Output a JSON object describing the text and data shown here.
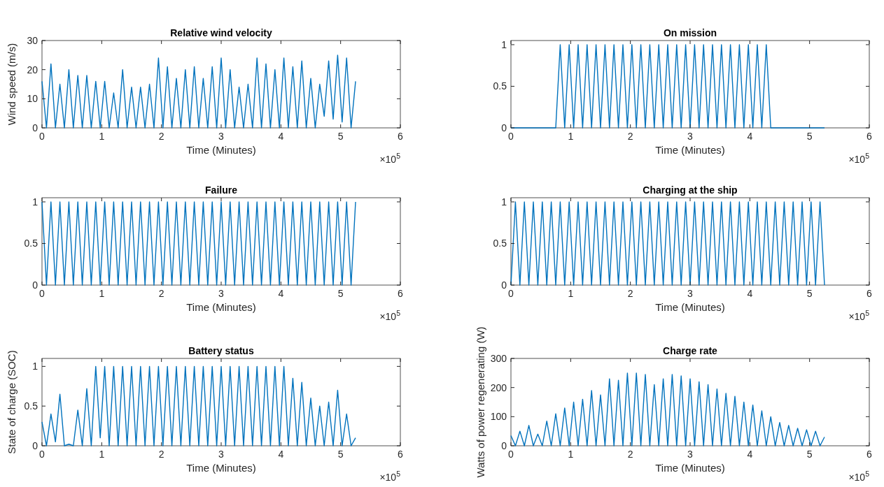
{
  "chart_data": [
    {
      "type": "line",
      "title": "Relative wind velocity",
      "xlabel": "Time (Minutes)",
      "ylabel": "Wind speed (m/s)",
      "annotations": [
        "×10$^{5}$"
      ],
      "xlim": [
        0,
        6
      ],
      "xticks": [
        0,
        1,
        2,
        3,
        4,
        5,
        6
      ],
      "ylim": [
        0,
        30
      ],
      "yticks": [
        0,
        10,
        20,
        30
      ],
      "grid": false,
      "x": [
        0,
        0.075,
        0.15,
        0.225,
        0.3,
        0.375,
        0.45,
        0.525,
        0.6,
        0.675,
        0.75,
        0.825,
        0.9,
        0.975,
        1.05,
        1.125,
        1.2,
        1.275,
        1.35,
        1.425,
        1.5,
        1.575,
        1.65,
        1.725,
        1.8,
        1.875,
        1.95,
        2.025,
        2.1,
        2.175,
        2.25,
        2.325,
        2.4,
        2.475,
        2.55,
        2.625,
        2.7,
        2.775,
        2.85,
        2.925,
        3,
        3.075,
        3.15,
        3.225,
        3.3,
        3.375,
        3.45,
        3.525,
        3.6,
        3.675,
        3.75,
        3.825,
        3.9,
        3.975,
        4.05,
        4.125,
        4.2,
        4.275,
        4.35,
        4.425,
        4.5,
        4.575,
        4.65,
        4.725,
        4.8,
        4.875,
        4.95,
        5.025,
        5.1,
        5.175,
        5.25
      ],
      "series": [
        {
          "color": "#0072bd",
          "values": [
            16,
            0,
            22,
            0,
            15,
            0,
            20,
            0,
            18,
            0,
            18,
            0,
            16,
            0,
            16,
            0,
            12,
            0,
            20,
            0,
            14,
            0,
            14,
            0,
            15,
            0,
            24,
            0,
            21,
            0,
            17,
            0,
            20,
            0,
            21,
            0,
            17,
            0,
            21,
            0,
            24,
            0,
            20,
            0,
            14,
            0,
            15,
            0,
            24,
            0,
            22,
            0,
            20,
            0,
            24,
            0,
            21,
            0,
            23,
            0,
            17,
            0,
            15,
            4,
            23,
            3,
            25,
            2,
            24,
            0,
            16
          ]
        }
      ]
    },
    {
      "type": "line",
      "title": "On mission",
      "xlabel": "Time (Minutes)",
      "annotations": [
        "×10$^{5}$"
      ],
      "xlim": [
        0,
        6
      ],
      "xticks": [
        0,
        1,
        2,
        3,
        4,
        5,
        6
      ],
      "ylim": [
        0,
        1.05
      ],
      "yticks": [
        0,
        0.5,
        1
      ],
      "grid": false,
      "x": [
        0,
        0.075,
        0.15,
        0.225,
        0.3,
        0.375,
        0.45,
        0.525,
        0.6,
        0.675,
        0.75,
        0.825,
        0.9,
        0.975,
        1.05,
        1.125,
        1.2,
        1.275,
        1.35,
        1.425,
        1.5,
        1.575,
        1.65,
        1.725,
        1.8,
        1.875,
        1.95,
        2.025,
        2.1,
        2.175,
        2.25,
        2.325,
        2.4,
        2.475,
        2.55,
        2.625,
        2.7,
        2.775,
        2.85,
        2.925,
        3,
        3.075,
        3.15,
        3.225,
        3.3,
        3.375,
        3.45,
        3.525,
        3.6,
        3.675,
        3.75,
        3.825,
        3.9,
        3.975,
        4.05,
        4.125,
        4.2,
        4.275,
        4.35,
        4.425,
        4.5,
        4.575,
        4.65,
        4.725,
        4.8,
        4.875,
        4.95,
        5.025,
        5.1,
        5.175,
        5.25
      ],
      "series": [
        {
          "color": "#0072bd",
          "values": [
            0,
            0,
            0,
            0,
            0,
            0,
            0,
            0,
            0,
            0,
            0,
            1,
            0,
            1,
            0,
            1,
            0,
            1,
            0,
            1,
            0,
            1,
            0,
            1,
            0,
            1,
            0,
            1,
            0,
            1,
            0,
            1,
            0,
            1,
            0,
            1,
            0,
            1,
            0,
            1,
            0,
            1,
            0,
            1,
            0,
            1,
            0,
            1,
            0,
            1,
            0,
            1,
            0,
            1,
            0,
            1,
            0,
            1,
            0,
            0,
            0,
            0,
            0,
            0,
            0,
            0,
            0,
            0,
            0,
            0,
            0
          ]
        }
      ]
    },
    {
      "type": "line",
      "title": "Failure",
      "xlabel": "Time (Minutes)",
      "annotations": [
        "×10$^{5}$"
      ],
      "xlim": [
        0,
        6
      ],
      "xticks": [
        0,
        1,
        2,
        3,
        4,
        5,
        6
      ],
      "ylim": [
        0,
        1.05
      ],
      "yticks": [
        0,
        0.5,
        1
      ],
      "grid": false,
      "x": [
        0,
        0.075,
        0.15,
        0.225,
        0.3,
        0.375,
        0.45,
        0.525,
        0.6,
        0.675,
        0.75,
        0.825,
        0.9,
        0.975,
        1.05,
        1.125,
        1.2,
        1.275,
        1.35,
        1.425,
        1.5,
        1.575,
        1.65,
        1.725,
        1.8,
        1.875,
        1.95,
        2.025,
        2.1,
        2.175,
        2.25,
        2.325,
        2.4,
        2.475,
        2.55,
        2.625,
        2.7,
        2.775,
        2.85,
        2.925,
        3,
        3.075,
        3.15,
        3.225,
        3.3,
        3.375,
        3.45,
        3.525,
        3.6,
        3.675,
        3.75,
        3.825,
        3.9,
        3.975,
        4.05,
        4.125,
        4.2,
        4.275,
        4.35,
        4.425,
        4.5,
        4.575,
        4.65,
        4.725,
        4.8,
        4.875,
        4.95,
        5.025,
        5.1,
        5.175,
        5.25
      ],
      "series": [
        {
          "color": "#0072bd",
          "values": [
            1,
            0,
            1,
            0,
            1,
            0,
            1,
            0,
            1,
            0,
            1,
            0,
            1,
            0,
            1,
            0,
            1,
            0,
            1,
            0,
            1,
            0,
            1,
            0,
            1,
            0,
            1,
            0,
            1,
            0,
            1,
            0,
            1,
            0,
            1,
            0,
            1,
            0,
            1,
            0,
            1,
            0,
            1,
            0,
            1,
            0,
            1,
            0,
            1,
            0,
            1,
            0,
            1,
            0,
            1,
            0,
            1,
            0,
            1,
            0,
            1,
            0,
            1,
            0,
            1,
            0,
            1,
            0,
            1,
            0,
            1
          ]
        }
      ]
    },
    {
      "type": "line",
      "title": "Charging at the ship",
      "xlabel": "Time (Minutes)",
      "annotations": [
        "×10$^{5}$"
      ],
      "xlim": [
        0,
        6
      ],
      "xticks": [
        0,
        1,
        2,
        3,
        4,
        5,
        6
      ],
      "ylim": [
        0,
        1.05
      ],
      "yticks": [
        0,
        0.5,
        1
      ],
      "grid": false,
      "x": [
        0,
        0.075,
        0.15,
        0.225,
        0.3,
        0.375,
        0.45,
        0.525,
        0.6,
        0.675,
        0.75,
        0.825,
        0.9,
        0.975,
        1.05,
        1.125,
        1.2,
        1.275,
        1.35,
        1.425,
        1.5,
        1.575,
        1.65,
        1.725,
        1.8,
        1.875,
        1.95,
        2.025,
        2.1,
        2.175,
        2.25,
        2.325,
        2.4,
        2.475,
        2.55,
        2.625,
        2.7,
        2.775,
        2.85,
        2.925,
        3,
        3.075,
        3.15,
        3.225,
        3.3,
        3.375,
        3.45,
        3.525,
        3.6,
        3.675,
        3.75,
        3.825,
        3.9,
        3.975,
        4.05,
        4.125,
        4.2,
        4.275,
        4.35,
        4.425,
        4.5,
        4.575,
        4.65,
        4.725,
        4.8,
        4.875,
        4.95,
        5.025,
        5.1,
        5.175,
        5.25
      ],
      "series": [
        {
          "color": "#0072bd",
          "values": [
            0,
            1,
            0,
            1,
            0,
            1,
            0,
            1,
            0,
            1,
            0,
            1,
            0,
            1,
            0,
            1,
            0,
            1,
            0,
            1,
            0,
            1,
            0,
            1,
            0,
            1,
            0,
            1,
            0,
            1,
            0,
            1,
            0,
            1,
            0,
            1,
            0,
            1,
            0,
            1,
            0,
            1,
            0,
            1,
            0,
            1,
            0,
            1,
            0,
            1,
            0,
            1,
            0,
            1,
            0,
            1,
            0,
            1,
            0,
            1,
            0,
            1,
            0,
            1,
            0,
            1,
            0,
            1,
            0,
            1,
            0
          ]
        }
      ]
    },
    {
      "type": "line",
      "title": "Battery status",
      "xlabel": "Time (Minutes)",
      "ylabel": "State of charge (SOC)",
      "annotations": [
        "×10$^{5}$"
      ],
      "xlim": [
        0,
        6
      ],
      "xticks": [
        0,
        1,
        2,
        3,
        4,
        5,
        6
      ],
      "ylim": [
        0,
        1.1
      ],
      "yticks": [
        0,
        0.5,
        1
      ],
      "grid": false,
      "x": [
        0,
        0.075,
        0.15,
        0.225,
        0.3,
        0.375,
        0.45,
        0.525,
        0.6,
        0.675,
        0.75,
        0.825,
        0.9,
        0.975,
        1.05,
        1.125,
        1.2,
        1.275,
        1.35,
        1.425,
        1.5,
        1.575,
        1.65,
        1.725,
        1.8,
        1.875,
        1.95,
        2.025,
        2.1,
        2.175,
        2.25,
        2.325,
        2.4,
        2.475,
        2.55,
        2.625,
        2.7,
        2.775,
        2.85,
        2.925,
        3,
        3.075,
        3.15,
        3.225,
        3.3,
        3.375,
        3.45,
        3.525,
        3.6,
        3.675,
        3.75,
        3.825,
        3.9,
        3.975,
        4.05,
        4.125,
        4.2,
        4.275,
        4.35,
        4.425,
        4.5,
        4.575,
        4.65,
        4.725,
        4.8,
        4.875,
        4.95,
        5.025,
        5.1,
        5.175,
        5.25
      ],
      "series": [
        {
          "color": "#0072bd",
          "values": [
            0.3,
            0,
            0.4,
            0.05,
            0.65,
            0,
            0.02,
            0,
            0.45,
            0,
            0.72,
            0,
            1,
            0.1,
            1,
            0,
            1,
            0,
            1,
            0,
            1,
            0,
            1,
            0,
            1,
            0,
            1,
            0,
            1,
            0,
            1,
            0,
            1,
            0,
            1,
            0,
            1,
            0,
            1,
            0,
            1,
            0,
            1,
            0,
            1,
            0,
            1,
            0,
            1,
            0,
            1,
            0,
            1,
            0,
            1,
            0,
            0.85,
            0,
            0.8,
            0,
            0.6,
            0,
            0.5,
            0,
            0.55,
            0,
            0.7,
            0,
            0.4,
            0,
            0.1
          ]
        }
      ]
    },
    {
      "type": "line",
      "title": "Charge rate",
      "xlabel": "Time (Minutes)",
      "ylabel": "Watts of power regenerating (W)",
      "annotations": [
        "×10$^{5}$"
      ],
      "xlim": [
        0,
        6
      ],
      "xticks": [
        0,
        1,
        2,
        3,
        4,
        5,
        6
      ],
      "ylim": [
        0,
        300
      ],
      "yticks": [
        0,
        100,
        200,
        300
      ],
      "grid": false,
      "x": [
        0,
        0.075,
        0.15,
        0.225,
        0.3,
        0.375,
        0.45,
        0.525,
        0.6,
        0.675,
        0.75,
        0.825,
        0.9,
        0.975,
        1.05,
        1.125,
        1.2,
        1.275,
        1.35,
        1.425,
        1.5,
        1.575,
        1.65,
        1.725,
        1.8,
        1.875,
        1.95,
        2.025,
        2.1,
        2.175,
        2.25,
        2.325,
        2.4,
        2.475,
        2.55,
        2.625,
        2.7,
        2.775,
        2.85,
        2.925,
        3,
        3.075,
        3.15,
        3.225,
        3.3,
        3.375,
        3.45,
        3.525,
        3.6,
        3.675,
        3.75,
        3.825,
        3.9,
        3.975,
        4.05,
        4.125,
        4.2,
        4.275,
        4.35,
        4.425,
        4.5,
        4.575,
        4.65,
        4.725,
        4.8,
        4.875,
        4.95,
        5.025,
        5.1,
        5.175,
        5.25
      ],
      "series": [
        {
          "color": "#0072bd",
          "values": [
            35,
            0,
            50,
            0,
            70,
            0,
            40,
            0,
            85,
            0,
            110,
            0,
            130,
            0,
            150,
            0,
            160,
            0,
            190,
            0,
            175,
            0,
            230,
            0,
            225,
            0,
            250,
            0,
            250,
            0,
            245,
            0,
            210,
            0,
            230,
            0,
            245,
            0,
            240,
            0,
            230,
            0,
            220,
            0,
            210,
            0,
            195,
            0,
            180,
            0,
            170,
            0,
            150,
            0,
            140,
            0,
            120,
            0,
            100,
            0,
            80,
            0,
            70,
            0,
            60,
            0,
            55,
            0,
            50,
            0,
            30
          ]
        }
      ]
    }
  ]
}
